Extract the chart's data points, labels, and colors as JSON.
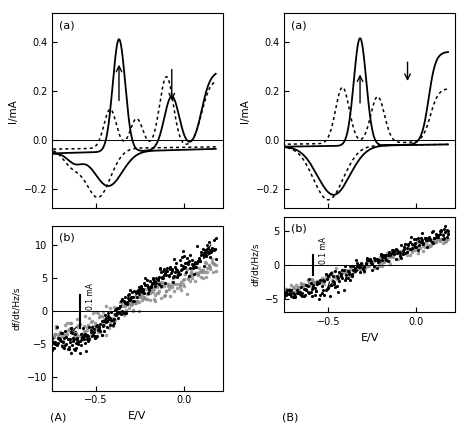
{
  "panel_A": {
    "subplot_a": {
      "ylim": [
        -0.28,
        0.52
      ],
      "xlim": [
        -0.75,
        0.22
      ],
      "ylabel": "I/mA",
      "yticks": [
        -0.2,
        0.0,
        0.2,
        0.4
      ],
      "xticks": [
        -0.5,
        0.0
      ]
    },
    "subplot_b": {
      "ylim": [
        -12,
        13
      ],
      "xlim": [
        -0.75,
        0.22
      ],
      "ylabel": "df/dt/Hz/s",
      "yticks": [
        -10,
        -5,
        0,
        5,
        10
      ],
      "xticks": [
        -0.5,
        0.0
      ],
      "xlabel": "E/V"
    }
  },
  "panel_B": {
    "subplot_a": {
      "ylim": [
        -0.28,
        0.52
      ],
      "xlim": [
        -0.75,
        0.22
      ],
      "ylabel": "I/mA",
      "yticks": [
        -0.2,
        0.0,
        0.2,
        0.4
      ],
      "xticks": [
        -0.5,
        0.0
      ]
    },
    "subplot_b": {
      "ylim": [
        -7,
        7
      ],
      "xlim": [
        -0.75,
        0.22
      ],
      "ylabel": "df/dt/Hz/s",
      "yticks": [
        -5,
        0,
        5
      ],
      "xticks": [
        -0.5,
        0.0
      ],
      "xlabel": "E/V"
    }
  },
  "label_A": "(A)",
  "label_B": "(B)"
}
